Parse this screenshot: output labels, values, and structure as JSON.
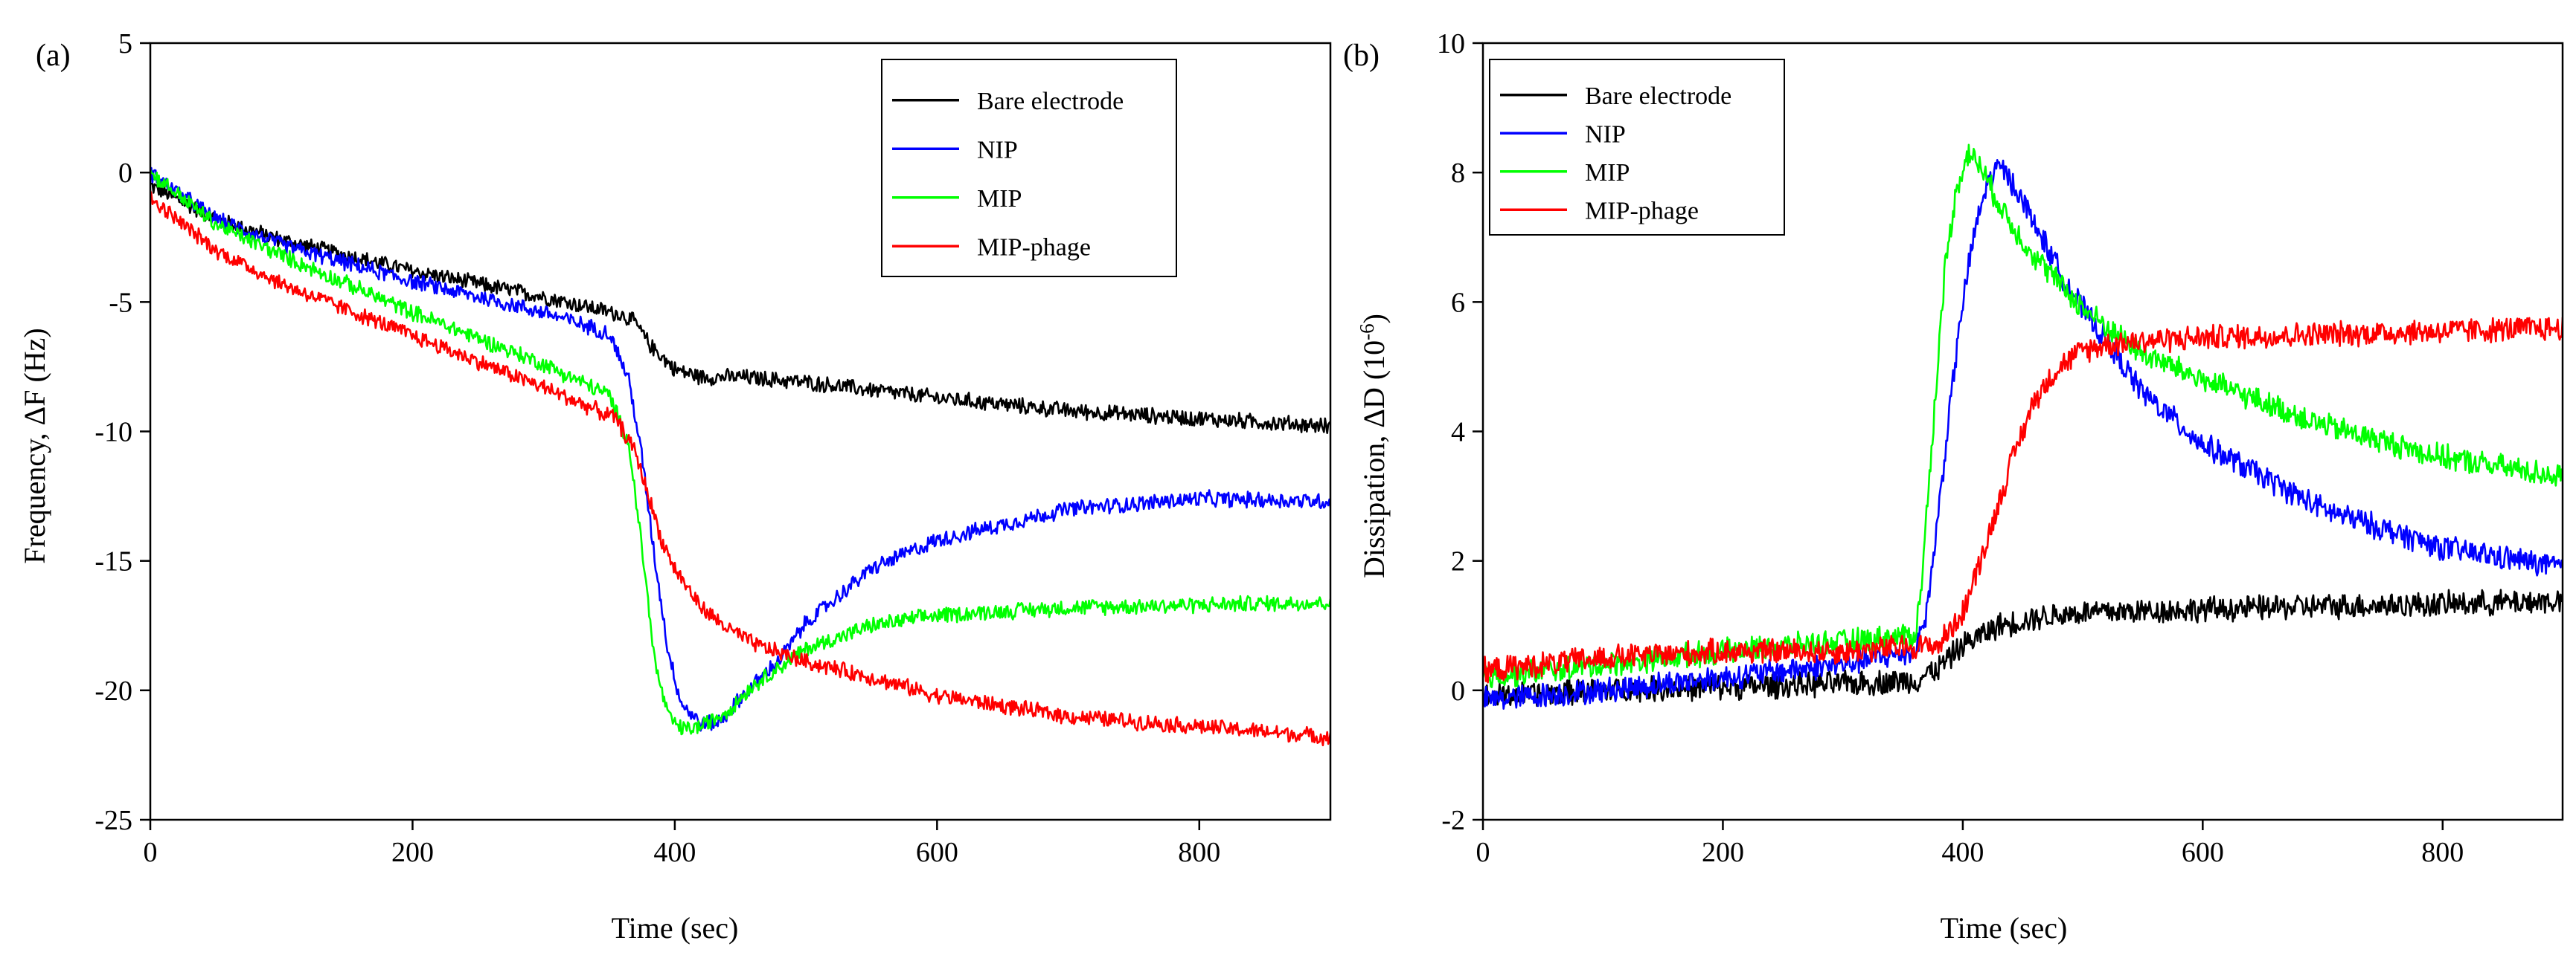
{
  "figure": {
    "panels": [
      {
        "panel_label": "(a)",
        "chart_data": {
          "type": "line",
          "xlabel": "Time (sec)",
          "ylabel": "Frequency, ΔF (Hz)",
          "xlim": [
            0,
            900
          ],
          "ylim": [
            -25,
            5
          ],
          "xticks": [
            0,
            200,
            400,
            600,
            800
          ],
          "yticks": [
            -25,
            -20,
            -15,
            -10,
            -5,
            0,
            5
          ],
          "grid": false,
          "legend_position": "top-right",
          "noise_amplitude": 0.35,
          "series": [
            {
              "name": "Bare electrode",
              "color": "#000000",
              "x": [
                0,
                50,
                100,
                200,
                300,
                360,
                370,
                380,
                400,
                420,
                450,
                500,
                600,
                700,
                800,
                900
              ],
              "y": [
                -0.5,
                -1.8,
                -2.6,
                -3.8,
                -4.8,
                -5.5,
                -5.8,
                -6.6,
                -7.6,
                -7.9,
                -7.9,
                -8.1,
                -8.7,
                -9.2,
                -9.5,
                -9.8
              ]
            },
            {
              "name": "NIP",
              "color": "#0000ff",
              "x": [
                0,
                50,
                100,
                200,
                300,
                350,
                365,
                375,
                385,
                395,
                405,
                420,
                435,
                450,
                480,
                500,
                550,
                600,
                700,
                800,
                900
              ],
              "y": [
                0,
                -1.8,
                -2.8,
                -4.2,
                -5.4,
                -6.2,
                -8,
                -11,
                -15,
                -18.5,
                -20.5,
                -21.3,
                -21.2,
                -20.3,
                -18.8,
                -17.4,
                -15.3,
                -14.2,
                -13.0,
                -12.6,
                -12.7
              ]
            },
            {
              "name": "MIP",
              "color": "#00ff00",
              "x": [
                0,
                50,
                100,
                200,
                300,
                350,
                365,
                375,
                385,
                395,
                405,
                420,
                440,
                460,
                500,
                550,
                600,
                700,
                800,
                900
              ],
              "y": [
                0,
                -2,
                -3.2,
                -5.4,
                -7.4,
                -8.6,
                -10.5,
                -14.5,
                -19,
                -21.0,
                -21.5,
                -21.4,
                -20.8,
                -19.8,
                -18.4,
                -17.5,
                -17.1,
                -16.8,
                -16.7,
                -16.6
              ]
            },
            {
              "name": "MIP-phage",
              "color": "#ff0000",
              "x": [
                0,
                50,
                100,
                200,
                300,
                355,
                370,
                380,
                390,
                400,
                420,
                440,
                460,
                500,
                550,
                600,
                700,
                800,
                900
              ],
              "y": [
                -1,
                -3,
                -4.3,
                -6.3,
                -8.3,
                -9.5,
                -10.8,
                -12.5,
                -14.2,
                -15.3,
                -16.8,
                -17.6,
                -18.2,
                -18.9,
                -19.5,
                -20.2,
                -21.0,
                -21.4,
                -21.8
              ]
            }
          ]
        }
      },
      {
        "panel_label": "(b)",
        "chart_data": {
          "type": "line",
          "xlabel": "Time (sec)",
          "ylabel": "Dissipation, ΔD (10",
          "ylabel_sup": "-6",
          "ylabel_end": ")",
          "xlim": [
            0,
            900
          ],
          "ylim": [
            -2,
            10
          ],
          "xticks": [
            0,
            200,
            400,
            600,
            800
          ],
          "yticks": [
            -2,
            0,
            2,
            4,
            6,
            8,
            10
          ],
          "grid": false,
          "legend_position": "top-left",
          "noise_amplitude": 0.22,
          "series": [
            {
              "name": "Bare electrode",
              "color": "#000000",
              "x": [
                0,
                100,
                200,
                300,
                360,
                380,
                400,
                430,
                470,
                500,
                600,
                700,
                800,
                900
              ],
              "y": [
                -0.1,
                0,
                0.05,
                0.1,
                0.15,
                0.35,
                0.7,
                1.0,
                1.15,
                1.2,
                1.25,
                1.3,
                1.33,
                1.38
              ]
            },
            {
              "name": "NIP",
              "color": "#0000ff",
              "x": [
                0,
                100,
                200,
                300,
                360,
                370,
                380,
                390,
                400,
                410,
                420,
                430,
                440,
                460,
                480,
                500,
                550,
                600,
                700,
                800,
                900
              ],
              "y": [
                -0.15,
                0,
                0.2,
                0.4,
                0.6,
                1.2,
                2.8,
                4.5,
                6.0,
                7.1,
                7.8,
                8.1,
                7.9,
                7.2,
                6.5,
                5.9,
                4.6,
                3.8,
                2.8,
                2.2,
                1.9
              ]
            },
            {
              "name": "MIP",
              "color": "#00ff00",
              "x": [
                0,
                100,
                200,
                300,
                360,
                365,
                375,
                385,
                395,
                405,
                415,
                425,
                440,
                460,
                500,
                550,
                600,
                700,
                800,
                900
              ],
              "y": [
                0.2,
                0.4,
                0.6,
                0.75,
                0.85,
                1.5,
                4.0,
                6.5,
                7.8,
                8.3,
                8.1,
                7.7,
                7.2,
                6.7,
                5.9,
                5.2,
                4.8,
                4.1,
                3.6,
                3.3
              ]
            },
            {
              "name": "MIP-phage",
              "color": "#ff0000",
              "x": [
                0,
                100,
                200,
                300,
                380,
                400,
                420,
                440,
                460,
                480,
                500,
                520,
                550,
                600,
                700,
                800,
                900
              ],
              "y": [
                0.3,
                0.5,
                0.6,
                0.6,
                0.7,
                1.2,
                2.3,
                3.5,
                4.5,
                5.0,
                5.25,
                5.35,
                5.4,
                5.45,
                5.5,
                5.55,
                5.6
              ]
            }
          ]
        }
      }
    ]
  }
}
